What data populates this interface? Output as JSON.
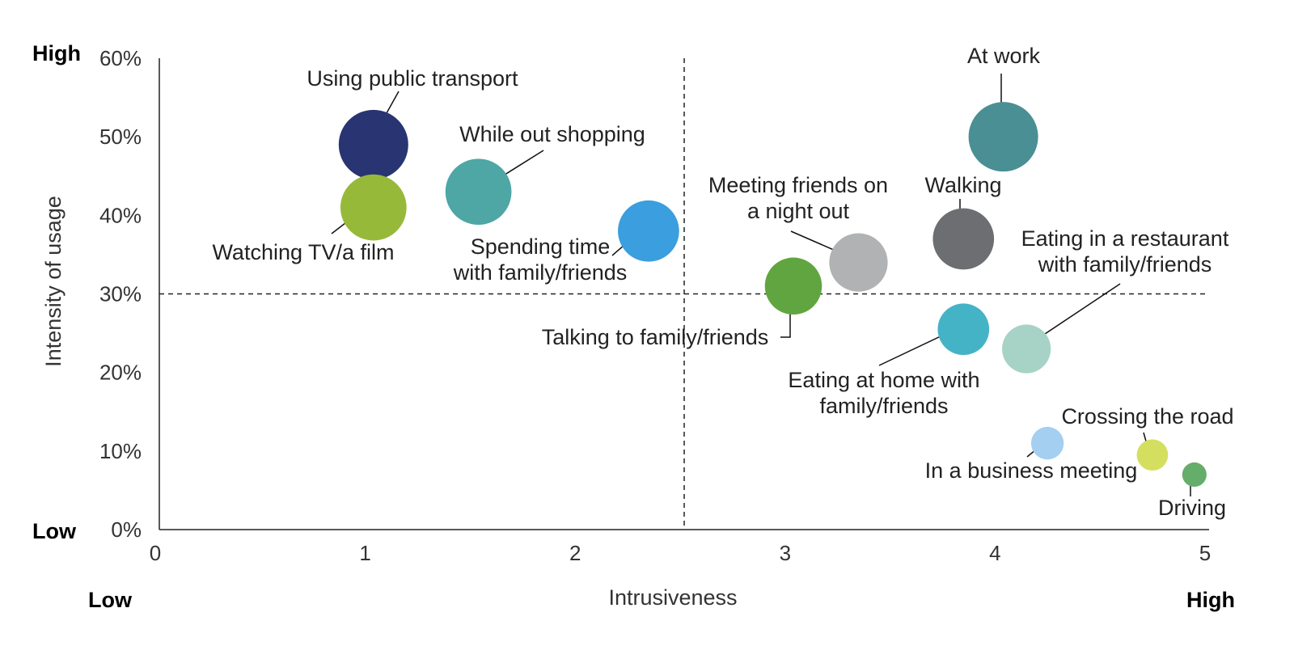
{
  "chart_data": {
    "type": "scatter",
    "subtype": "bubble",
    "xlabel": "Intrusiveness",
    "ylabel": "Intensity of usage",
    "xlim": [
      0,
      5
    ],
    "ylim": [
      0,
      60
    ],
    "x_ticks": [
      "0",
      "1",
      "2",
      "3",
      "4",
      "5"
    ],
    "y_ticks": [
      "0%",
      "10%",
      "20%",
      "30%",
      "40%",
      "50%",
      "60%"
    ],
    "y_unit": "%",
    "x_low_label": "Low",
    "x_high_label": "High",
    "y_low_label": "Low",
    "y_high_label": "High",
    "reference_lines": {
      "x": 2.5,
      "y": 30,
      "style": "dashed"
    },
    "grid": false,
    "points": [
      {
        "label": "Using public transport",
        "x": 1.02,
        "y": 49,
        "size": 1.0,
        "color": "#283572"
      },
      {
        "label": "Watching TV/a film",
        "x": 1.02,
        "y": 41,
        "size": 0.95,
        "color": "#97b93a"
      },
      {
        "label": "While out shopping",
        "x": 1.52,
        "y": 43,
        "size": 0.95,
        "color": "#4ea6a5"
      },
      {
        "label": "Spending time with family/friends",
        "x": 2.33,
        "y": 38,
        "size": 0.88,
        "color": "#3a9edf"
      },
      {
        "label": "Talking to family/friends",
        "x": 3.02,
        "y": 31,
        "size": 0.82,
        "color": "#61a540"
      },
      {
        "label": "Meeting friends on a night out",
        "x": 3.33,
        "y": 34,
        "size": 0.84,
        "color": "#b0b2b4"
      },
      {
        "label": "At work",
        "x": 4.02,
        "y": 50,
        "size": 1.0,
        "color": "#4a8f94"
      },
      {
        "label": "Walking",
        "x": 3.83,
        "y": 37,
        "size": 0.88,
        "color": "#6d6e71"
      },
      {
        "label": "Eating at home with family/friends",
        "x": 3.83,
        "y": 25.5,
        "size": 0.74,
        "color": "#45b3c6"
      },
      {
        "label": "Eating in a restaurant with family/friends",
        "x": 4.13,
        "y": 23,
        "size": 0.7,
        "color": "#a6d3c6"
      },
      {
        "label": "In a business meeting",
        "x": 4.23,
        "y": 11,
        "size": 0.47,
        "color": "#a5cff0"
      },
      {
        "label": "Crossing the road",
        "x": 4.73,
        "y": 9.5,
        "size": 0.45,
        "color": "#d5df5f"
      },
      {
        "label": "Driving",
        "x": 4.93,
        "y": 7,
        "size": 0.35,
        "color": "#65ad6a"
      }
    ]
  }
}
